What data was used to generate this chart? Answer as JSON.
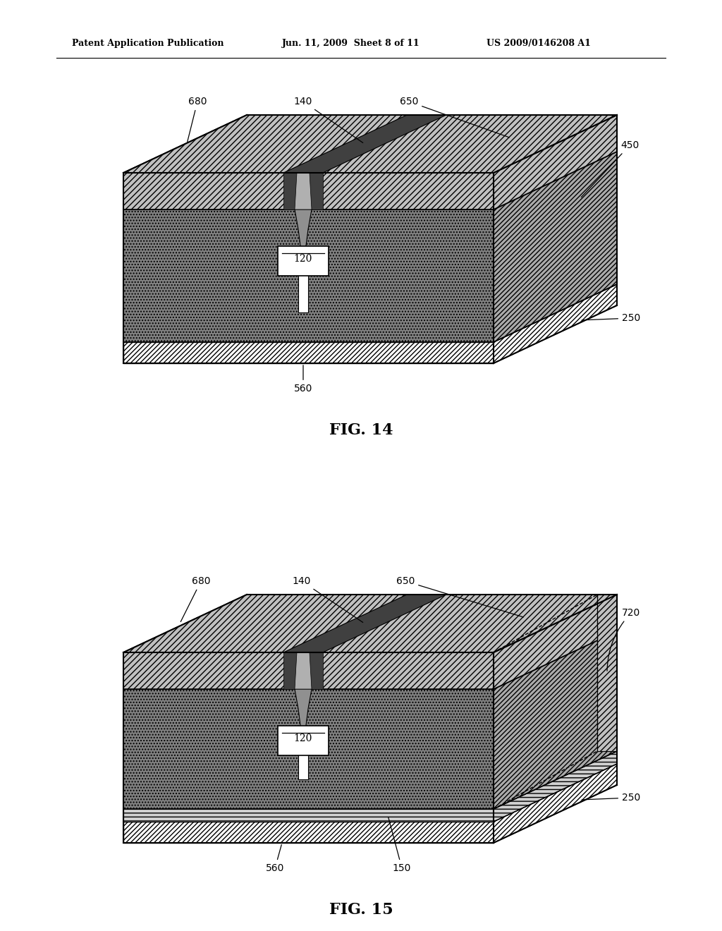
{
  "bg_color": "#ffffff",
  "header_left": "Patent Application Publication",
  "header_mid": "Jun. 11, 2009  Sheet 8 of 11",
  "header_right": "US 2009/0146208 A1",
  "fig14_label": "FIG. 14",
  "fig15_label": "FIG. 15"
}
